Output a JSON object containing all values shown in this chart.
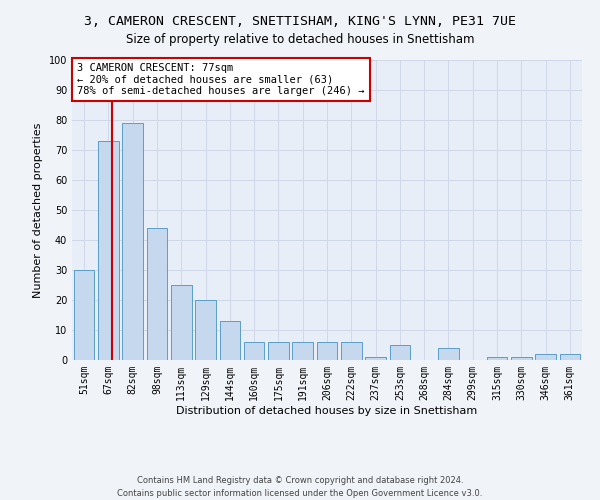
{
  "title": "3, CAMERON CRESCENT, SNETTISHAM, KING'S LYNN, PE31 7UE",
  "subtitle": "Size of property relative to detached houses in Snettisham",
  "xlabel": "Distribution of detached houses by size in Snettisham",
  "ylabel": "Number of detached properties",
  "bar_values": [
    30,
    73,
    79,
    44,
    25,
    20,
    13,
    6,
    6,
    6,
    6,
    6,
    1,
    5,
    0,
    4,
    0,
    1,
    1,
    2,
    2
  ],
  "bin_labels": [
    "51sqm",
    "67sqm",
    "82sqm",
    "98sqm",
    "113sqm",
    "129sqm",
    "144sqm",
    "160sqm",
    "175sqm",
    "191sqm",
    "206sqm",
    "222sqm",
    "237sqm",
    "253sqm",
    "268sqm",
    "284sqm",
    "299sqm",
    "315sqm",
    "330sqm",
    "346sqm",
    "361sqm"
  ],
  "bar_color": "#c5d8ed",
  "bar_edge_color": "#5a9ec8",
  "vline_color": "#cc0000",
  "annotation_text": "3 CAMERON CRESCENT: 77sqm\n← 20% of detached houses are smaller (63)\n78% of semi-detached houses are larger (246) →",
  "annotation_box_color": "#ffffff",
  "annotation_box_edge_color": "#cc0000",
  "ylim": [
    0,
    100
  ],
  "yticks": [
    0,
    10,
    20,
    30,
    40,
    50,
    60,
    70,
    80,
    90,
    100
  ],
  "grid_color": "#d0d8e8",
  "background_color": "#e8eef8",
  "fig_background_color": "#f0f4f8",
  "footer_text": "Contains HM Land Registry data © Crown copyright and database right 2024.\nContains public sector information licensed under the Open Government Licence v3.0.",
  "title_fontsize": 9.5,
  "subtitle_fontsize": 8.5,
  "xlabel_fontsize": 8,
  "ylabel_fontsize": 8,
  "tick_fontsize": 7,
  "annotation_fontsize": 7.5,
  "footer_fontsize": 6
}
